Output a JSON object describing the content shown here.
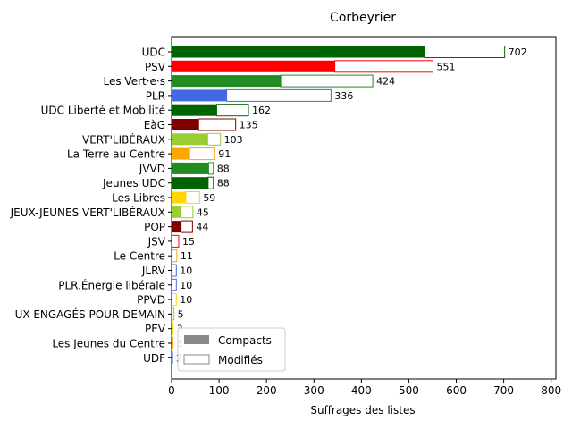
{
  "chart_data": {
    "type": "bar",
    "orientation": "horizontal",
    "title": "Corbeyrier",
    "xlabel": "Suffrages des listes",
    "ylabel": "",
    "xlim": [
      0,
      810
    ],
    "xticks": [
      "0",
      "100",
      "200",
      "300",
      "400",
      "500",
      "600",
      "700",
      "800"
    ],
    "grid": false,
    "legend_position": "lower-left",
    "legend": [
      {
        "label": "Compacts",
        "style": "filled",
        "color": "#888888"
      },
      {
        "label": "Modifiés",
        "style": "outline",
        "color": "#888888"
      }
    ],
    "categories": [
      "UDC",
      "PSV",
      "Les Vert·e·s",
      "PLR",
      "UDC Liberté et Mobilité",
      "EàG",
      "VERT'LIBÉRAUX",
      "La Terre au Centre",
      "JVVD",
      "Jeunes UDC",
      "Les Libres",
      "JEUX-JEUNES VERT'LIBÉRAUX",
      "POP",
      "JSV",
      "Le Centre",
      "JLRV",
      "PLR.Énergie libérale",
      "PPVD",
      "UX-ENGAGÉS POUR DEMAIN",
      "PEV",
      "Les Jeunes du Centre",
      "UDF"
    ],
    "series": [
      {
        "name": "Compacts",
        "values": [
          533,
          344,
          230,
          116,
          95,
          57,
          76,
          38,
          78,
          77,
          30,
          20,
          20,
          0,
          0,
          0,
          0,
          0,
          0,
          0,
          0,
          0
        ]
      },
      {
        "name": "Modifiés",
        "values": [
          169,
          207,
          194,
          220,
          67,
          78,
          27,
          53,
          10,
          11,
          29,
          25,
          24,
          15,
          11,
          10,
          10,
          10,
          5,
          3,
          3,
          2
        ]
      }
    ],
    "totals": [
      "702",
      "551",
      "424",
      "336",
      "162",
      "135",
      "103",
      "91",
      "88",
      "88",
      "59",
      "45",
      "44",
      "15",
      "11",
      "10",
      "10",
      "10",
      "5",
      "3",
      "3",
      "2"
    ],
    "colors": [
      "#006400",
      "#ff0000",
      "#228b22",
      "#4169e1",
      "#006400",
      "#800000",
      "#9acd32",
      "#ffa500",
      "#228b22",
      "#006400",
      "#ffd700",
      "#9acd32",
      "#800000",
      "#ff0000",
      "#ffa500",
      "#4169e1",
      "#4169e1",
      "#ffd700",
      "#9acd32",
      "#ffd700",
      "#ffa500",
      "#4169e1"
    ]
  }
}
